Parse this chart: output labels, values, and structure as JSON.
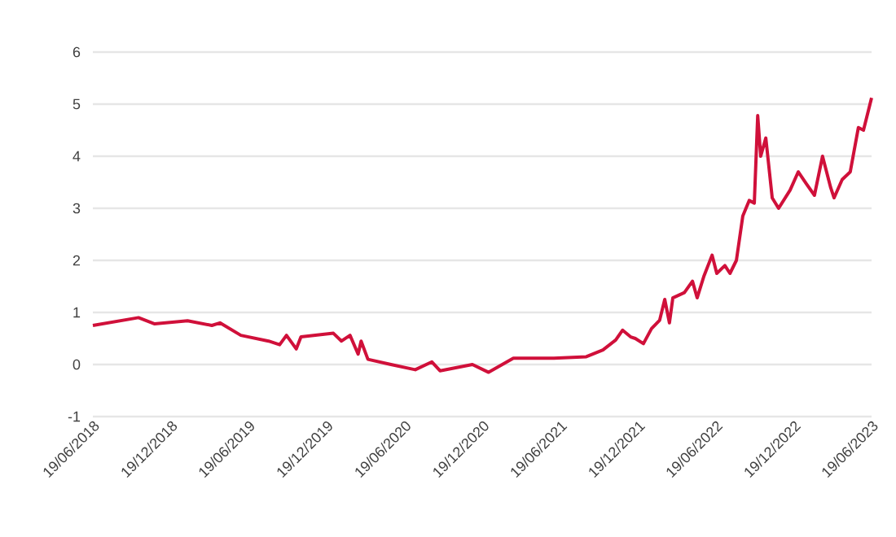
{
  "chart_data": {
    "type": "line",
    "series": [
      {
        "color": "#d0103a",
        "x": [
          "2018-06-19",
          "2018-10-04",
          "2018-11-11",
          "2019-01-27",
          "2019-03-25",
          "2019-04-13",
          "2019-06-01",
          "2019-08-05",
          "2019-08-31",
          "2019-09-16",
          "2019-10-09",
          "2019-10-20",
          "2020-01-04",
          "2020-01-23",
          "2020-02-12",
          "2020-03-02",
          "2020-03-09",
          "2020-03-25",
          "2020-05-18",
          "2020-07-14",
          "2020-08-22",
          "2020-09-10",
          "2020-11-25",
          "2021-01-02",
          "2021-03-01",
          "2021-06-04",
          "2021-08-19",
          "2021-09-27",
          "2021-10-27",
          "2021-11-12",
          "2021-12-01",
          "2021-12-12",
          "2021-12-31",
          "2022-01-19",
          "2022-02-07",
          "2022-02-19",
          "2022-03-02",
          "2022-03-10",
          "2022-04-06",
          "2022-04-25",
          "2022-05-06",
          "2022-05-22",
          "2022-06-10",
          "2022-06-21",
          "2022-07-10",
          "2022-07-22",
          "2022-08-06",
          "2022-08-21",
          "2022-09-05",
          "2022-09-17",
          "2022-09-25",
          "2022-10-02",
          "2022-10-14",
          "2022-10-29",
          "2022-11-13",
          "2022-12-10",
          "2022-12-29",
          "2023-01-17",
          "2023-02-05",
          "2023-02-24",
          "2023-03-15",
          "2023-03-23",
          "2023-04-11",
          "2023-04-30",
          "2023-05-19",
          "2023-05-31",
          "2023-06-19"
        ],
        "values": [
          0.75,
          0.9,
          0.78,
          0.84,
          0.75,
          0.8,
          0.56,
          0.45,
          0.38,
          0.56,
          0.3,
          0.53,
          0.6,
          0.45,
          0.56,
          0.2,
          0.45,
          0.1,
          0.0,
          -0.1,
          0.05,
          -0.12,
          0.0,
          -0.15,
          0.12,
          0.12,
          0.15,
          0.28,
          0.47,
          0.66,
          0.53,
          0.5,
          0.4,
          0.69,
          0.85,
          1.25,
          0.8,
          1.28,
          1.38,
          1.6,
          1.28,
          1.7,
          2.1,
          1.75,
          1.9,
          1.75,
          2.0,
          2.85,
          3.15,
          3.1,
          4.78,
          4.0,
          4.35,
          3.2,
          3.0,
          3.35,
          3.7,
          3.47,
          3.25,
          4.0,
          3.4,
          3.2,
          3.55,
          3.7,
          4.55,
          4.5,
          5.12
        ]
      }
    ],
    "xlim": [
      "2018-06-19",
      "2023-06-19"
    ],
    "xticks": [
      {
        "value": "2018-06-19",
        "label": "19/06/2018"
      },
      {
        "value": "2018-12-19",
        "label": "19/12/2018"
      },
      {
        "value": "2019-06-19",
        "label": "19/06/2019"
      },
      {
        "value": "2019-12-19",
        "label": "19/12/2019"
      },
      {
        "value": "2020-06-19",
        "label": "19/06/2020"
      },
      {
        "value": "2020-12-19",
        "label": "19/12/2020"
      },
      {
        "value": "2021-06-19",
        "label": "19/06/2021"
      },
      {
        "value": "2021-12-19",
        "label": "19/12/2021"
      },
      {
        "value": "2022-06-19",
        "label": "19/06/2022"
      },
      {
        "value": "2022-12-19",
        "label": "19/12/2022"
      },
      {
        "value": "2023-06-19",
        "label": "19/06/2023"
      }
    ],
    "ylim": [
      -1,
      6
    ],
    "yticks": [
      -1,
      0,
      1,
      2,
      3,
      4,
      5,
      6
    ],
    "grid": "y",
    "marker": "none",
    "line_style": "solid"
  }
}
